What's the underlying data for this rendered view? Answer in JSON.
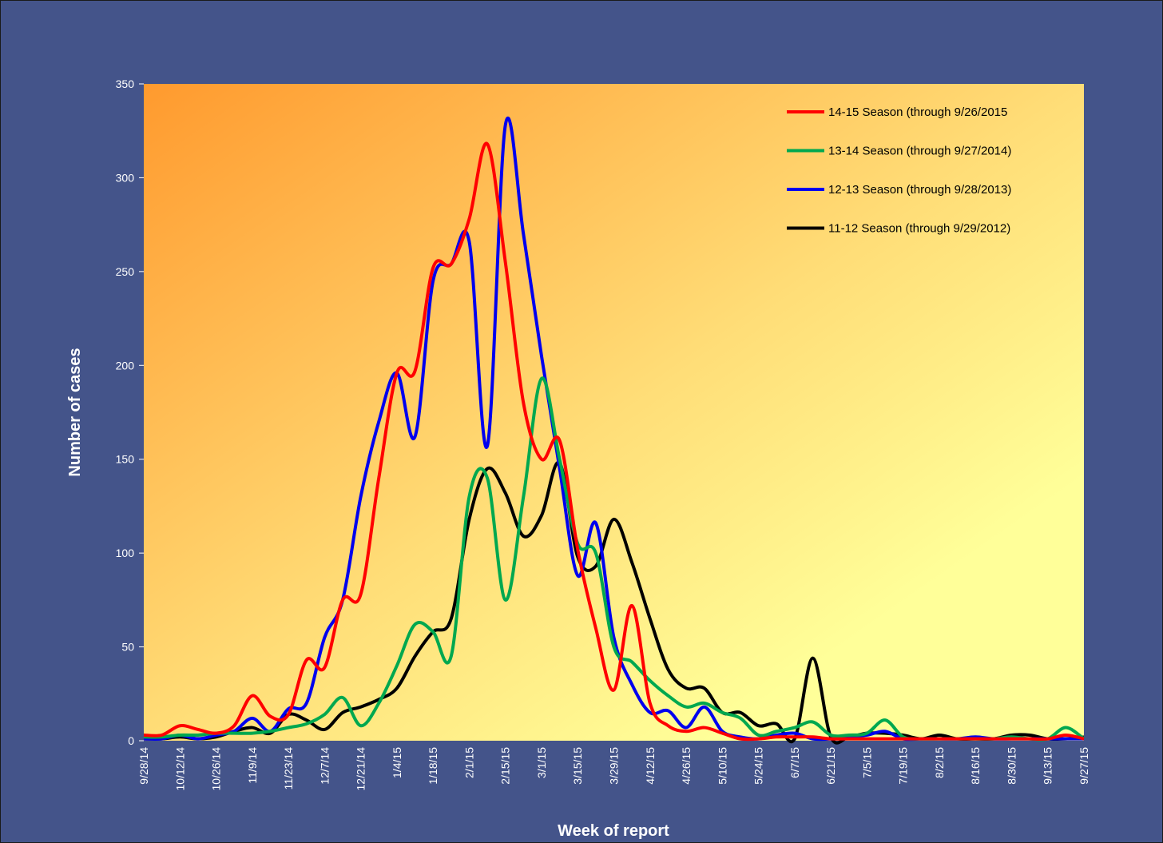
{
  "chart_data": {
    "type": "line",
    "x_label": "Week of report",
    "y_label": "Number of cases",
    "ylim": [
      0,
      350
    ],
    "yticks": [
      0,
      50,
      100,
      150,
      200,
      250,
      300,
      350
    ],
    "categories": [
      "9/28/14",
      null,
      "10/12/14",
      null,
      "10/26/14",
      null,
      "11/9/14",
      null,
      "11/23/14",
      null,
      "12/7/14",
      null,
      "12/21/14",
      null,
      "1/4/15",
      null,
      "1/18/15",
      null,
      "2/1/15",
      null,
      "2/15/15",
      null,
      "3/1/15",
      null,
      "3/15/15",
      null,
      "3/29/15",
      null,
      "4/12/15",
      null,
      "4/26/15",
      null,
      "5/10/15",
      null,
      "5/24/15",
      null,
      "6/7/15",
      null,
      "6/21/15",
      null,
      "7/5/15",
      null,
      "7/19/15",
      null,
      "8/2/15",
      null,
      "8/16/15",
      null,
      "8/30/15",
      null,
      "9/13/15",
      null,
      "9/27/15"
    ],
    "series": [
      {
        "name": "14-15 Season (through 9/26/2015",
        "color": "#ff0000",
        "values": [
          3,
          3,
          8,
          6,
          4,
          8,
          24,
          13,
          14,
          43,
          39,
          75,
          78,
          140,
          196,
          197,
          252,
          254,
          278,
          318,
          255,
          180,
          150,
          160,
          102,
          60,
          27,
          72,
          20,
          8,
          5,
          7,
          4,
          1,
          1,
          2,
          2,
          2,
          1,
          1,
          1,
          1,
          1,
          1,
          1,
          1,
          1,
          1,
          1,
          1,
          1,
          3,
          1
        ]
      },
      {
        "name": "13-14 Season (through 9/27/2014)",
        "color": "#00a84f",
        "values": [
          2,
          2,
          3,
          3,
          4,
          4,
          4,
          5,
          7,
          9,
          14,
          23,
          8,
          20,
          40,
          62,
          58,
          45,
          130,
          140,
          75,
          130,
          193,
          150,
          105,
          100,
          50,
          42,
          32,
          24,
          18,
          20,
          15,
          12,
          3,
          5,
          7,
          10,
          3,
          3,
          4,
          11,
          2,
          1,
          1,
          1,
          1,
          1,
          2,
          1,
          1,
          7,
          1
        ]
      },
      {
        "name": "12-13 Season (through 9/28/2013)",
        "color": "#0000ee",
        "values": [
          1,
          1,
          3,
          1,
          3,
          5,
          12,
          5,
          17,
          20,
          55,
          75,
          130,
          170,
          196,
          162,
          245,
          254,
          266,
          157,
          328,
          270,
          205,
          145,
          88,
          116,
          55,
          30,
          15,
          16,
          7,
          18,
          5,
          2,
          1,
          3,
          4,
          1,
          1,
          2,
          3,
          5,
          1,
          1,
          1,
          1,
          2,
          1,
          1,
          1,
          1,
          1,
          1
        ]
      },
      {
        "name": "11-12 Season (through 9/29/2012)",
        "color": "#000000",
        "values": [
          1,
          1,
          2,
          1,
          2,
          5,
          7,
          4,
          14,
          11,
          6,
          15,
          18,
          22,
          28,
          45,
          58,
          65,
          118,
          145,
          132,
          109,
          120,
          148,
          98,
          93,
          118,
          95,
          65,
          38,
          28,
          28,
          15,
          15,
          8,
          9,
          1,
          44,
          2,
          2,
          4,
          4,
          3,
          1,
          3,
          1,
          1,
          1,
          3,
          3,
          1,
          1,
          2
        ]
      }
    ]
  }
}
